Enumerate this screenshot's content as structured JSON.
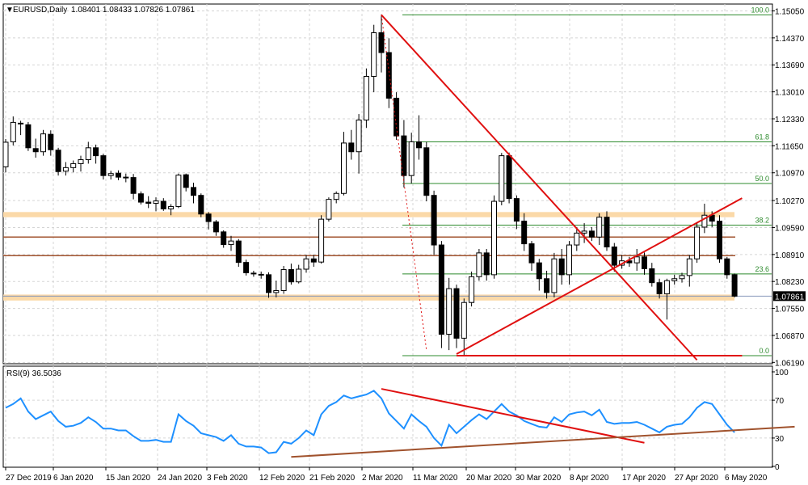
{
  "header": {
    "symbol": "EURUSD,Daily",
    "ohlc": "1.08401 1.08433 1.07826 1.07861"
  },
  "rsi_header": "RSI(9) 36.5036",
  "colors": {
    "bull_fill": "#ffffff",
    "bear_fill": "#000000",
    "candle_outline": "#000000",
    "grid": "#d5d5d5",
    "fib_line": "#2e8b2e",
    "trend_red": "#e01010",
    "sr_brown": "#a0522d",
    "sr_zone": "#fbd9a8",
    "rsi_line": "#1e90ff",
    "current_price_bg": "#000000"
  },
  "chart_data": [
    {
      "type": "candlestick",
      "title": "EURUSD,Daily",
      "price_axis_ticks": [
        "1.15050",
        "1.14370",
        "1.13690",
        "1.13010",
        "1.12330",
        "1.11650",
        "1.10970",
        "1.10270",
        "1.09590",
        "1.08910",
        "1.08230",
        "1.07550",
        "1.06870",
        "1.06190"
      ],
      "current_price": "1.07861",
      "time_axis_labels": [
        "27 Dec 2019",
        "6 Jan 2020",
        "15 Jan 2020",
        "24 Jan 2020",
        "3 Feb 2020",
        "12 Feb 2020",
        "21 Feb 2020",
        "2 Mar 2020",
        "11 Mar 2020",
        "20 Mar 2020",
        "30 Mar 2020",
        "8 Apr 2020",
        "17 Apr 2020",
        "27 Apr 2020",
        "6 May 2020"
      ],
      "ohlc": [
        [
          1.1112,
          1.1182,
          1.1098,
          1.1174
        ],
        [
          1.1175,
          1.1239,
          1.1166,
          1.1224
        ],
        [
          1.1222,
          1.1228,
          1.1192,
          1.122
        ],
        [
          1.1218,
          1.1225,
          1.1152,
          1.116
        ],
        [
          1.1158,
          1.1183,
          1.1135,
          1.115
        ],
        [
          1.115,
          1.1205,
          1.114,
          1.1195
        ],
        [
          1.1194,
          1.1204,
          1.114,
          1.1155
        ],
        [
          1.1154,
          1.116,
          1.109,
          1.11
        ],
        [
          1.1101,
          1.1124,
          1.109,
          1.111
        ],
        [
          1.111,
          1.1128,
          1.1098,
          1.112
        ],
        [
          1.112,
          1.114,
          1.11,
          1.113
        ],
        [
          1.113,
          1.1175,
          1.112,
          1.116
        ],
        [
          1.116,
          1.1168,
          1.112,
          1.114
        ],
        [
          1.114,
          1.1145,
          1.108,
          1.109
        ],
        [
          1.109,
          1.1102,
          1.108,
          1.1095
        ],
        [
          1.1096,
          1.1103,
          1.1078,
          1.1086
        ],
        [
          1.1086,
          1.1095,
          1.1073,
          1.1085
        ],
        [
          1.1085,
          1.1094,
          1.103,
          1.1045
        ],
        [
          1.1044,
          1.105,
          1.1017,
          1.1023
        ],
        [
          1.1023,
          1.1038,
          1.1008,
          1.102
        ],
        [
          1.102,
          1.1035,
          1.1,
          1.1026
        ],
        [
          1.1025,
          1.1033,
          1.1001,
          1.1006
        ],
        [
          1.1006,
          1.1018,
          1.099,
          1.1012
        ],
        [
          1.1012,
          1.1095,
          1.1008,
          1.1091
        ],
        [
          1.1092,
          1.1095,
          1.105,
          1.106
        ],
        [
          1.106,
          1.1072,
          1.102,
          1.104
        ],
        [
          1.104,
          1.1045,
          1.0985,
          1.0993
        ],
        [
          1.0993,
          1.0998,
          1.0954,
          1.0974
        ],
        [
          1.0973,
          1.0978,
          1.0938,
          1.0948
        ],
        [
          1.0948,
          1.0952,
          1.0908,
          1.0916
        ],
        [
          1.0916,
          1.0938,
          1.09,
          1.0925
        ],
        [
          1.0925,
          1.093,
          1.086,
          1.0871
        ],
        [
          1.0871,
          1.0878,
          1.0838,
          1.0845
        ],
        [
          1.0844,
          1.085,
          1.0835,
          1.0842
        ],
        [
          1.0841,
          1.0848,
          1.083,
          1.084
        ],
        [
          1.084,
          1.0846,
          1.0782,
          1.0795
        ],
        [
          1.0795,
          1.0825,
          1.0783,
          1.08
        ],
        [
          1.08,
          1.0862,
          1.0792,
          1.0853
        ],
        [
          1.0853,
          1.0868,
          1.0815,
          1.0822
        ],
        [
          1.0822,
          1.0865,
          1.0818,
          1.0854
        ],
        [
          1.0854,
          1.089,
          1.0845,
          1.088
        ],
        [
          1.088,
          1.089,
          1.086,
          1.0872
        ],
        [
          1.0872,
          1.099,
          1.0868,
          1.098
        ],
        [
          1.098,
          1.1035,
          1.0974,
          1.103
        ],
        [
          1.103,
          1.105,
          1.102,
          1.1045
        ],
        [
          1.1045,
          1.12,
          1.104,
          1.1172
        ],
        [
          1.1172,
          1.1205,
          1.113,
          1.115
        ],
        [
          1.115,
          1.1245,
          1.1095,
          1.123
        ],
        [
          1.123,
          1.136,
          1.121,
          1.134
        ],
        [
          1.134,
          1.147,
          1.13,
          1.145
        ],
        [
          1.145,
          1.1496,
          1.135,
          1.14
        ],
        [
          1.14,
          1.1436,
          1.126,
          1.1285
        ],
        [
          1.1285,
          1.13,
          1.118,
          1.119
        ],
        [
          1.119,
          1.123,
          1.106,
          1.109
        ],
        [
          1.109,
          1.1198,
          1.107,
          1.1175
        ],
        [
          1.1175,
          1.1242,
          1.113,
          1.116
        ],
        [
          1.116,
          1.1175,
          1.1025,
          1.104
        ],
        [
          1.104,
          1.1052,
          1.089,
          1.0915
        ],
        [
          1.0915,
          1.0925,
          1.0655,
          1.069
        ],
        [
          1.069,
          1.0832,
          1.065,
          1.0805
        ],
        [
          1.0805,
          1.0815,
          1.0655,
          1.068
        ],
        [
          1.068,
          1.078,
          1.0636,
          1.077
        ],
        [
          1.077,
          1.0848,
          1.076,
          1.0835
        ],
        [
          1.0835,
          1.0905,
          1.0825,
          1.0895
        ],
        [
          1.0895,
          1.0905,
          1.0825,
          1.084
        ],
        [
          1.084,
          1.104,
          1.083,
          1.1025
        ],
        [
          1.1025,
          1.1147,
          1.1015,
          1.114
        ],
        [
          1.114,
          1.1148,
          1.102,
          1.1032
        ],
        [
          1.1032,
          1.104,
          1.0955,
          1.0975
        ],
        [
          1.0975,
          1.0995,
          1.09,
          1.0918
        ],
        [
          1.0918,
          1.0925,
          1.085,
          1.087
        ],
        [
          1.087,
          1.088,
          1.08,
          1.083
        ],
        [
          1.083,
          1.085,
          1.078,
          1.0795
        ],
        [
          1.0795,
          1.0895,
          1.0783,
          1.088
        ],
        [
          1.088,
          1.0905,
          1.0815,
          1.084
        ],
        [
          1.084,
          1.0925,
          1.0815,
          1.0915
        ],
        [
          1.0915,
          1.096,
          1.09,
          1.0945
        ],
        [
          1.0945,
          1.097,
          1.092,
          1.095
        ],
        [
          1.095,
          1.096,
          1.0925,
          1.0935
        ],
        [
          1.0935,
          1.0995,
          1.0915,
          1.0985
        ],
        [
          1.0985,
          1.1,
          1.09,
          1.091
        ],
        [
          1.091,
          1.092,
          1.0848,
          1.0864
        ],
        [
          1.0864,
          1.089,
          1.0855,
          1.0875
        ],
        [
          1.0875,
          1.0885,
          1.086,
          1.087
        ],
        [
          1.087,
          1.0905,
          1.085,
          1.0885
        ],
        [
          1.0885,
          1.0896,
          1.084,
          1.0855
        ],
        [
          1.0855,
          1.087,
          1.081,
          1.082
        ],
        [
          1.082,
          1.083,
          1.078,
          1.0792
        ],
        [
          1.0792,
          1.083,
          1.0727,
          1.0825
        ],
        [
          1.0825,
          1.084,
          1.0815,
          1.083
        ],
        [
          1.083,
          1.0845,
          1.082,
          1.0838
        ],
        [
          1.0838,
          1.089,
          1.081,
          1.088
        ],
        [
          1.088,
          1.0972,
          1.087,
          1.096
        ],
        [
          1.096,
          1.1019,
          1.0945,
          1.099
        ],
        [
          1.099,
          1.1,
          1.096,
          1.0975
        ],
        [
          1.0975,
          1.099,
          1.087,
          1.088
        ],
        [
          1.088,
          1.0885,
          1.083,
          1.084
        ],
        [
          1.084,
          1.0843,
          1.0783,
          1.0786
        ]
      ],
      "fibonacci": [
        {
          "label": "100.0",
          "price": 1.1495
        },
        {
          "label": "61.8",
          "price": 1.1175
        },
        {
          "label": "50.0",
          "price": 1.107
        },
        {
          "label": "38.2",
          "price": 1.0965
        },
        {
          "label": "23.6",
          "price": 1.0842
        },
        {
          "label": "0.0",
          "price": 1.0636
        }
      ],
      "horizontal_levels": [
        {
          "kind": "zone",
          "from": 1.0985,
          "to": 1.0998
        },
        {
          "kind": "line",
          "price": 1.0935
        },
        {
          "kind": "line",
          "price": 1.0888
        },
        {
          "kind": "zone",
          "from": 1.0775,
          "to": 1.079
        }
      ],
      "trendlines": [
        {
          "from": {
            "bar": 50,
            "price": 1.1495
          },
          "to": {
            "bar": 92,
            "price": 1.0625
          }
        },
        {
          "from": {
            "bar": 60,
            "price": 1.064
          },
          "to": {
            "bar": 98,
            "price": 1.1033
          }
        },
        {
          "from": {
            "bar": 60,
            "price": 1.0636
          },
          "to": {
            "bar": 98,
            "price": 1.0636
          }
        },
        {
          "from": {
            "bar": 50,
            "price": 1.1495
          },
          "to": {
            "bar": 56,
            "price": 1.065
          },
          "dotted": true
        }
      ]
    },
    {
      "type": "line",
      "title": "RSI(9) 36.5036",
      "yticks": [
        100,
        70,
        30,
        0
      ],
      "ylim": [
        0,
        100
      ],
      "values": [
        62,
        66,
        72,
        58,
        50,
        54,
        58,
        48,
        42,
        43,
        46,
        52,
        47,
        40,
        40,
        38,
        38,
        32,
        27,
        27,
        28,
        26,
        26,
        55,
        48,
        43,
        35,
        33,
        31,
        27,
        33,
        24,
        21,
        21,
        20,
        14,
        15,
        26,
        24,
        30,
        38,
        33,
        55,
        64,
        68,
        75,
        72,
        74,
        76,
        80,
        72,
        56,
        48,
        40,
        55,
        48,
        42,
        30,
        22,
        44,
        35,
        42,
        49,
        55,
        50,
        58,
        66,
        58,
        54,
        48,
        45,
        42,
        41,
        52,
        47,
        55,
        57,
        58,
        54,
        60,
        47,
        45,
        46,
        46,
        47,
        44,
        40,
        36,
        42,
        44,
        45,
        52,
        62,
        68,
        66,
        55,
        44,
        36
      ],
      "trendlines": [
        {
          "from": {
            "bar": 50,
            "value": 82
          },
          "to": {
            "bar": 85,
            "value": 25
          }
        },
        {
          "from": {
            "bar": 38,
            "value": 10
          },
          "to": {
            "bar": 105,
            "value": 42
          }
        }
      ]
    }
  ]
}
